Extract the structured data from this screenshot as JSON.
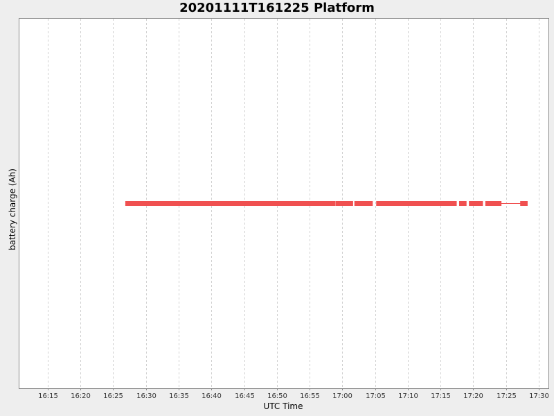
{
  "chart_data": {
    "type": "line",
    "title": "20201111T161225 Platform",
    "xlabel": "UTC Time",
    "ylabel": "battery charge (Ah)",
    "x_ticks": [
      "16:15",
      "16:20",
      "16:25",
      "16:30",
      "16:35",
      "16:40",
      "16:45",
      "16:50",
      "16:55",
      "17:00",
      "17:05",
      "17:10",
      "17:15",
      "17:20",
      "17:25",
      "17:30"
    ],
    "xlim": [
      "16:10:40",
      "17:31:30"
    ],
    "grid": true,
    "color": "#f05050",
    "series": [
      {
        "marker": "square",
        "segments": [
          [
            "16:27:10",
            "16:58:40"
          ],
          [
            "16:59:20",
            "17:00:30"
          ],
          [
            "17:00:50",
            "17:01:20"
          ],
          [
            "17:02:10",
            "17:03:20"
          ],
          [
            "17:03:50",
            "17:04:20"
          ],
          [
            "17:05:30",
            "17:11:20"
          ],
          [
            "17:11:40",
            "17:14:20"
          ],
          [
            "17:14:40",
            "17:15:10"
          ],
          [
            "17:15:40",
            "17:17:10"
          ],
          [
            "17:18:10",
            "17:18:40"
          ],
          [
            "17:19:40",
            "17:21:10"
          ],
          [
            "17:22:10",
            "17:24:00"
          ],
          [
            "17:27:30",
            "17:28:00"
          ]
        ],
        "line": [
          "17:24:00",
          "17:27:30"
        ]
      }
    ]
  }
}
